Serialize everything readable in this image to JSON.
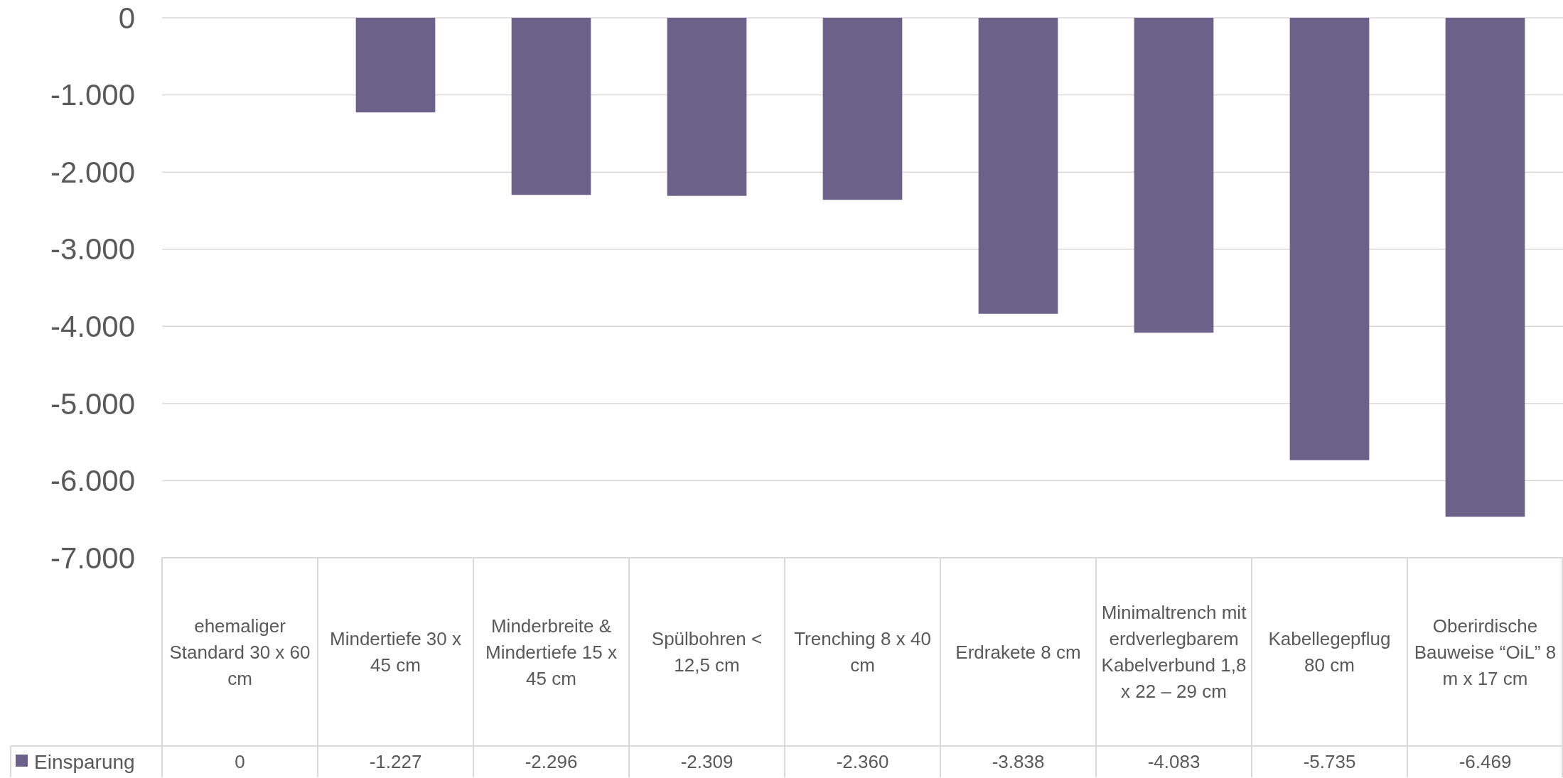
{
  "chart_data": {
    "type": "bar",
    "categories": [
      "ehemaliger Standard 30 x 60 cm",
      "Mindertiefe 30 x 45 cm",
      "Minderbreite & Mindertiefe 15 x 45 cm",
      "Spülbohren < 12,5 cm",
      "Trenching 8 x 40 cm",
      "Erdrakete 8 cm",
      "Minimaltrench mit erdverlegbarem Kabelverbund 1,8 x 22 – 29 cm",
      "Kabellegepflug 80 cm",
      "Oberirdische Bauweise “OiL” 8 m x 17 cm"
    ],
    "series": [
      {
        "name": "Einsparung",
        "color": "#6c6289",
        "values": [
          0,
          -1227,
          -2296,
          -2309,
          -2360,
          -3838,
          -4083,
          -5735,
          -6469
        ],
        "value_labels": [
          "0",
          "-1.227",
          "-2.296",
          "-2.309",
          "-2.360",
          "-3.838",
          "-4.083",
          "-5.735",
          "-6.469"
        ]
      }
    ],
    "ylim": [
      -7000,
      0
    ],
    "yticks": [
      0,
      {
        "value": -1000,
        "label": "-1.000"
      },
      {
        "value": -2000,
        "label": "-2.000"
      },
      {
        "value": -3000,
        "label": "-3.000"
      },
      {
        "value": -4000,
        "label": "-4.000"
      },
      {
        "value": -5000,
        "label": "-5.000"
      },
      {
        "value": -6000,
        "label": "-6.000"
      },
      {
        "value": -7000,
        "label": "-7.000"
      }
    ],
    "grid": "y",
    "legend": "bottom"
  }
}
